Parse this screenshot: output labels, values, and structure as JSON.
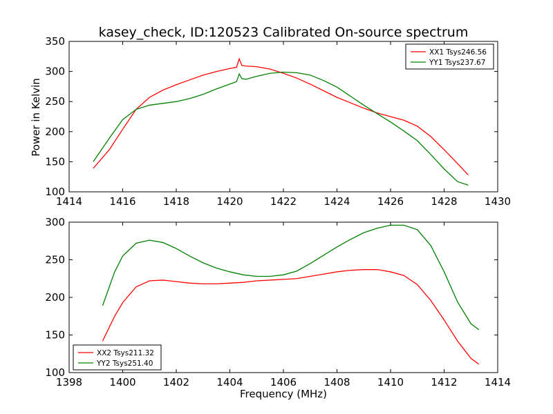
{
  "figure": {
    "title": "kasey_check, ID:120523 Calibrated On-source spectrum",
    "ylabel": "Power in Kelvin",
    "xlabel": "Frequency (MHz)"
  },
  "chart_data": [
    {
      "type": "line",
      "title": "kasey_check, ID:120523 Calibrated On-source spectrum",
      "xlabel": "",
      "ylabel": "Power in Kelvin",
      "xlim": [
        1414,
        1430
      ],
      "ylim": [
        100,
        350
      ],
      "xticks": [
        "1414",
        "1416",
        "1418",
        "1420",
        "1422",
        "1424",
        "1426",
        "1428",
        "1430"
      ],
      "yticks": [
        "100",
        "150",
        "200",
        "250",
        "300",
        "350"
      ],
      "legend_position": "top-right",
      "grid": false,
      "series": [
        {
          "name": "XX1 Tsys246.56",
          "color": "#ff0000",
          "x": [
            1414.9,
            1415.5,
            1416.0,
            1416.5,
            1417.0,
            1417.5,
            1418.0,
            1418.5,
            1419.0,
            1419.5,
            1420.0,
            1420.25,
            1420.35,
            1420.45,
            1420.6,
            1421.0,
            1421.5,
            1422.0,
            1422.5,
            1423.0,
            1423.5,
            1424.0,
            1424.5,
            1425.0,
            1425.5,
            1426.0,
            1426.5,
            1427.0,
            1427.5,
            1428.0,
            1428.5,
            1428.9
          ],
          "y": [
            139,
            170,
            204,
            237,
            257,
            269,
            278,
            286,
            294,
            300,
            305,
            307,
            321,
            310,
            309,
            308,
            304,
            297,
            289,
            279,
            268,
            257,
            248,
            239,
            231,
            225,
            219,
            209,
            192,
            170,
            147,
            128
          ]
        },
        {
          "name": "YY1 Tsys237.67",
          "color": "#008000",
          "x": [
            1414.9,
            1415.5,
            1416.0,
            1416.5,
            1417.0,
            1417.5,
            1418.0,
            1418.5,
            1419.0,
            1419.5,
            1420.0,
            1420.25,
            1420.35,
            1420.45,
            1420.6,
            1421.0,
            1421.5,
            1422.0,
            1422.5,
            1423.0,
            1423.5,
            1424.0,
            1424.5,
            1425.0,
            1425.5,
            1426.0,
            1426.5,
            1427.0,
            1427.5,
            1428.0,
            1428.5,
            1428.9
          ],
          "y": [
            150,
            189,
            220,
            237,
            244,
            247,
            250,
            255,
            262,
            271,
            279,
            283,
            296,
            288,
            287,
            292,
            297,
            299,
            298,
            294,
            285,
            274,
            259,
            244,
            230,
            216,
            201,
            185,
            162,
            138,
            117,
            111
          ]
        }
      ]
    },
    {
      "type": "line",
      "title": "",
      "xlabel": "Frequency (MHz)",
      "ylabel": "",
      "xlim": [
        1398,
        1414
      ],
      "ylim": [
        100,
        300
      ],
      "xticks": [
        "1398",
        "1400",
        "1402",
        "1404",
        "1406",
        "1408",
        "1410",
        "1412",
        "1414"
      ],
      "yticks": [
        "100",
        "150",
        "200",
        "250",
        "300"
      ],
      "legend_position": "bottom-left",
      "grid": false,
      "series": [
        {
          "name": "XX2 Tsys211.32",
          "color": "#ff0000",
          "x": [
            1399.25,
            1399.7,
            1400.0,
            1400.5,
            1401.0,
            1401.5,
            1402.0,
            1402.5,
            1403.0,
            1403.5,
            1404.0,
            1404.5,
            1405.0,
            1405.5,
            1406.0,
            1406.5,
            1407.0,
            1407.5,
            1408.0,
            1408.5,
            1409.0,
            1409.5,
            1410.0,
            1410.5,
            1411.0,
            1411.5,
            1412.0,
            1412.5,
            1413.0,
            1413.3
          ],
          "y": [
            142,
            175,
            193,
            214,
            222,
            223,
            221,
            219,
            218,
            218,
            219,
            220,
            222,
            223,
            224,
            225,
            228,
            231,
            234,
            236,
            237,
            237,
            234,
            229,
            217,
            196,
            170,
            142,
            119,
            111
          ]
        },
        {
          "name": "YY2 Tsys251.40",
          "color": "#008000",
          "x": [
            1399.25,
            1399.7,
            1400.0,
            1400.5,
            1401.0,
            1401.5,
            1402.0,
            1402.5,
            1403.0,
            1403.5,
            1404.0,
            1404.5,
            1405.0,
            1405.5,
            1406.0,
            1406.5,
            1407.0,
            1407.5,
            1408.0,
            1408.5,
            1409.0,
            1409.5,
            1410.0,
            1410.5,
            1411.0,
            1411.5,
            1412.0,
            1412.5,
            1413.0,
            1413.3
          ],
          "y": [
            189,
            234,
            255,
            272,
            276,
            273,
            265,
            255,
            246,
            239,
            234,
            230,
            228,
            228,
            230,
            235,
            245,
            256,
            267,
            277,
            286,
            292,
            296,
            296,
            290,
            269,
            234,
            194,
            165,
            157
          ]
        }
      ]
    }
  ]
}
